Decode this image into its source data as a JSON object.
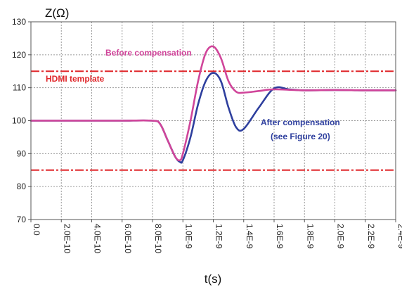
{
  "chart_data": {
    "type": "line",
    "xlabel": "t(s)",
    "ylabel": "Z(Ω)",
    "xlim": [
      0,
      2.4e-09
    ],
    "ylim": [
      70,
      130
    ],
    "xticks": [
      0,
      2e-10,
      4e-10,
      6e-10,
      8e-10,
      1e-09,
      1.2e-09,
      1.4e-09,
      1.6e-09,
      1.8e-09,
      2e-09,
      2.2e-09,
      2.4e-09
    ],
    "xtick_labels": [
      "0.0",
      "2.0E-10",
      "4.0E-10",
      "6.0E-10",
      "8.0E-10",
      "1.0E-9",
      "1.2E-9",
      "1.4E-9",
      "1.6E-9",
      "1.8E-9",
      "2.0E-9",
      "2.2E-9",
      "2.4E-9"
    ],
    "yticks": [
      70,
      80,
      90,
      100,
      110,
      120,
      130
    ],
    "grid": true,
    "colors": {
      "before": "#d0459a",
      "after": "#2e3f9e",
      "template": "#e0262a",
      "grid": "#9a9a9a"
    },
    "template_limits": [
      85,
      115
    ],
    "series": [
      {
        "name": "Before compensation",
        "x": [
          0,
          2e-10,
          4e-10,
          6e-10,
          8e-10,
          8.5e-10,
          9e-10,
          9.5e-10,
          9.8e-10,
          1e-09,
          1.05e-09,
          1.1e-09,
          1.15e-09,
          1.2e-09,
          1.25e-09,
          1.3e-09,
          1.35e-09,
          1.4e-09,
          1.5e-09,
          1.6e-09,
          1.8e-09,
          2e-09,
          2.2e-09,
          2.4e-09
        ],
        "y": [
          100,
          100,
          100,
          100,
          100,
          99,
          94,
          89,
          88,
          90,
          100,
          112,
          120.5,
          122.5,
          119,
          112,
          108.8,
          108.5,
          109,
          109.5,
          109.2,
          109.3,
          109.2,
          109.2
        ]
      },
      {
        "name": "After compensation",
        "x": [
          0,
          2e-10,
          4e-10,
          6e-10,
          8e-10,
          8.5e-10,
          9e-10,
          9.5e-10,
          9.8e-10,
          1e-09,
          1.05e-09,
          1.1e-09,
          1.15e-09,
          1.2e-09,
          1.25e-09,
          1.3e-09,
          1.35e-09,
          1.4e-09,
          1.5e-09,
          1.6e-09,
          1.7e-09,
          1.8e-09,
          2e-09,
          2.2e-09,
          2.4e-09
        ],
        "y": [
          100,
          100,
          100,
          100,
          100,
          99,
          94,
          89,
          87.5,
          88,
          95,
          105,
          112,
          114.5,
          112,
          104,
          98,
          97.5,
          104,
          109.8,
          109.5,
          109.2,
          109.3,
          109.2,
          109.2
        ]
      }
    ],
    "annotations": {
      "template_label": "HDMI template",
      "before_label": "Before compensation",
      "after_label": "After compensation",
      "after_sub_label": "(see Figure 20)"
    }
  }
}
